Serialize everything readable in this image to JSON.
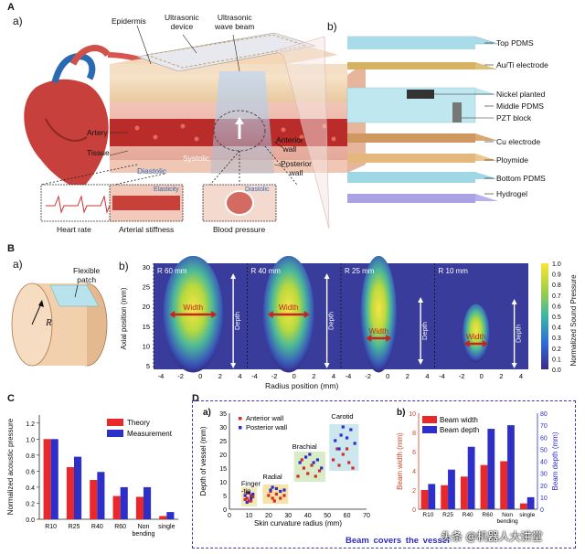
{
  "panelA": {
    "letter": "A",
    "sub_a": "a)",
    "sub_b": "b)",
    "labels": {
      "epidermis": "Epidermis",
      "device": "Ultrasonic\ndevice",
      "beam": "Ultrasonic\nwave beam",
      "artery": "Artery",
      "tissue": "Tissue",
      "diastolic": "Diastolic",
      "systolic": "Systolic",
      "anterior": "Anterior\nwall",
      "posterior": "Posterior\nwall"
    },
    "insets": [
      "Heart rate",
      "Arterial stiffness",
      "Blood pressure"
    ],
    "inset_tags": {
      "elasticity": "Elasticity",
      "diastolic": "Diastolic"
    },
    "layers": [
      "Top PDMS",
      "Au/Ti electrode",
      "Nickel planted",
      "Middle PDMS",
      "PZT block",
      "Cu electrode",
      "Ploymide",
      "Bottom PDMS",
      "Hydrogel"
    ]
  },
  "panelB": {
    "letter": "B",
    "sub_a": "a)",
    "sub_b": "b)",
    "patch_label": "Flexible\npatch",
    "radius_symbol": "R",
    "heatmap": {
      "ylabel": "Axial position (mm)",
      "xlabel": "Radius position (mm)",
      "panels": [
        "R 60 mm",
        "R 40 mm",
        "R 25 mm",
        "R 10 mm"
      ],
      "width_label": "Width",
      "depth_label": "Depth",
      "yticks": [
        "30",
        "25",
        "20",
        "15",
        "10",
        "5"
      ],
      "xticks": [
        "-4",
        "-2",
        "0",
        "2",
        "4"
      ],
      "colorbar_label": "Normalized Sound Pressure",
      "colorbar_ticks": [
        "1.0",
        "0.9",
        "0.8",
        "0.7",
        "0.6",
        "0.5",
        "0.4",
        "0.3",
        "0.2",
        "0.1",
        "0.0"
      ]
    }
  },
  "panelC": {
    "letter": "C",
    "ylabel": "Normalized acoustic pressure",
    "yticks": [
      "0.0",
      "0.2",
      "0.4",
      "0.6",
      "0.8",
      "1.0",
      "1.2"
    ],
    "legend": [
      "Theory",
      "Measurement"
    ],
    "colors": {
      "theory": "#e8282a",
      "measurement": "#2e2ec8"
    }
  },
  "panelD": {
    "letter": "D",
    "sub_a": "a)",
    "sub_b": "b)",
    "footer": "Beam  covers  the  vessel",
    "watermark": "头条 @机器人大讲堂"
  },
  "chart_data": [
    {
      "type": "bar",
      "categories": [
        "R10",
        "R25",
        "R40",
        "R60",
        "Non\nbending",
        "single"
      ],
      "series": [
        {
          "name": "Theory",
          "values": [
            1.0,
            0.65,
            0.49,
            0.29,
            0.28,
            0.04
          ]
        },
        {
          "name": "Measurement",
          "values": [
            1.0,
            0.78,
            0.59,
            0.4,
            0.4,
            0.09
          ]
        }
      ],
      "ylabel": "Normalized acoustic pressure",
      "ylim": [
        0,
        1.3
      ],
      "legend": "top-right"
    },
    {
      "type": "scatter",
      "xlabel": "Skin curvature radius (mm)",
      "ylabel": "Depth of vessel (mm)",
      "xlim": [
        0,
        70
      ],
      "ylim": [
        0,
        35
      ],
      "xticks": [
        "0",
        "10",
        "20",
        "30",
        "40",
        "50",
        "60",
        "70"
      ],
      "yticks": [
        "0",
        "5",
        "10",
        "15",
        "20",
        "25",
        "30",
        "35"
      ],
      "groups": [
        "Finger\n-tip",
        "Radial",
        "Brachial",
        "Carotid"
      ],
      "series": [
        {
          "name": "Anterior wall",
          "points": [
            [
              8,
              3.5
            ],
            [
              9,
              4
            ],
            [
              10,
              3
            ],
            [
              11,
              5
            ],
            [
              12,
              4.5
            ],
            [
              9,
              6
            ],
            [
              11,
              3
            ],
            [
              20,
              5
            ],
            [
              22,
              4
            ],
            [
              24,
              5.5
            ],
            [
              26,
              4
            ],
            [
              28,
              5
            ],
            [
              23,
              3
            ],
            [
              21,
              6.5
            ],
            [
              35,
              12
            ],
            [
              38,
              15
            ],
            [
              40,
              13
            ],
            [
              42,
              16
            ],
            [
              44,
              12
            ],
            [
              46,
              14
            ],
            [
              37,
              18
            ],
            [
              53,
              18
            ],
            [
              56,
              16
            ],
            [
              58,
              20
            ],
            [
              61,
              17
            ],
            [
              63,
              15
            ],
            [
              55,
              22
            ],
            [
              60,
              22
            ]
          ]
        },
        {
          "name": "Posterior wall",
          "points": [
            [
              8,
              5
            ],
            [
              10,
              6
            ],
            [
              12,
              5.5
            ],
            [
              9,
              2.5
            ],
            [
              11,
              4
            ],
            [
              21,
              7
            ],
            [
              24,
              7.5
            ],
            [
              26,
              6.5
            ],
            [
              28,
              7
            ],
            [
              22,
              8
            ],
            [
              36,
              17
            ],
            [
              39,
              19
            ],
            [
              41,
              20
            ],
            [
              43,
              17
            ],
            [
              45,
              18
            ],
            [
              47,
              15
            ],
            [
              54,
              25
            ],
            [
              57,
              27
            ],
            [
              60,
              26
            ],
            [
              62,
              29
            ],
            [
              64,
              24
            ],
            [
              58,
              30
            ],
            [
              56,
              22
            ]
          ]
        }
      ]
    },
    {
      "type": "bar",
      "categories": [
        "R10",
        "R25",
        "R40",
        "R60",
        "Non\nbending",
        "single"
      ],
      "series": [
        {
          "name": "Beam width",
          "values": [
            2.0,
            2.5,
            3.4,
            4.6,
            5.0,
            0.6
          ],
          "axis": "left"
        },
        {
          "name": "Beam depth",
          "values": [
            21,
            33,
            52,
            67,
            70,
            10
          ],
          "axis": "right"
        }
      ],
      "ylabel_left": "Beam width (mm)",
      "ylabel_right": "Beam depth (mm)",
      "ylim_left": [
        0,
        10
      ],
      "ylim_right": [
        0,
        80
      ],
      "yticks_left": [
        "0",
        "2",
        "4",
        "6",
        "8",
        "10"
      ],
      "yticks_right": [
        "0",
        "10",
        "20",
        "30",
        "40",
        "50",
        "60",
        "70",
        "80"
      ],
      "legend": "top-left"
    }
  ]
}
